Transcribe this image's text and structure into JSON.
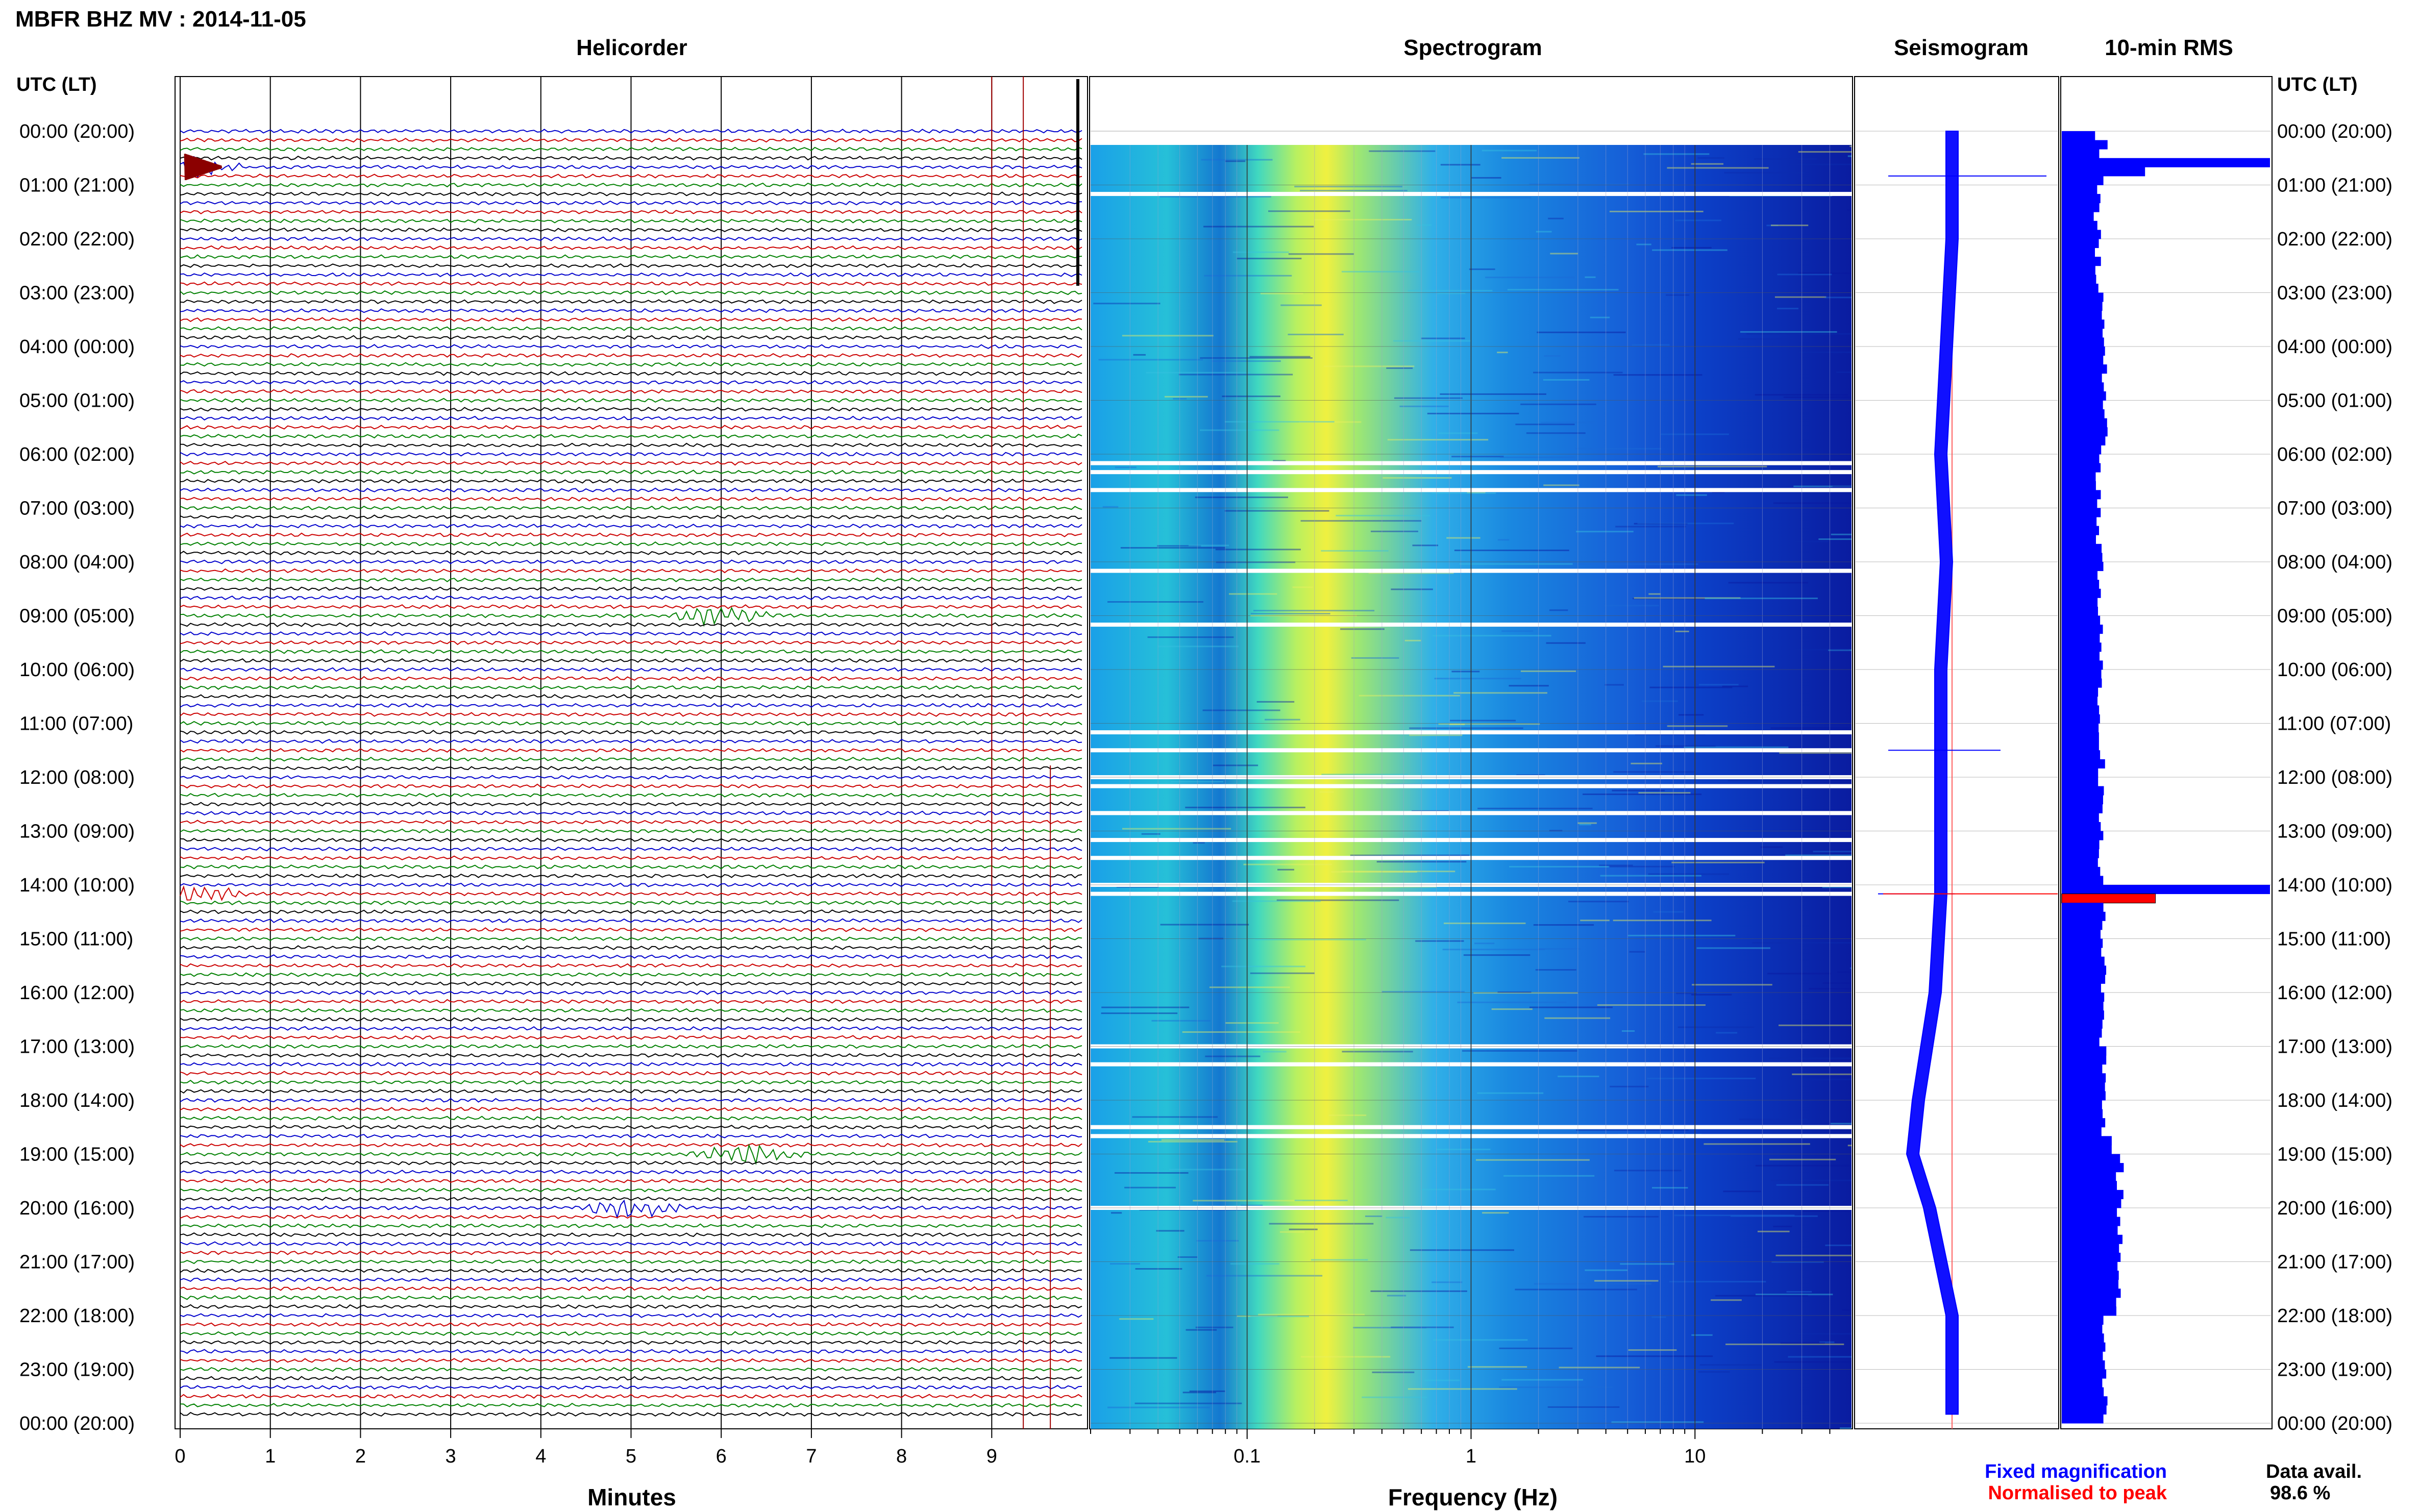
{
  "title": "MBFR BHZ MV : 2014-11-05",
  "panels": {
    "helicorder": "Helicorder",
    "spectrogram": "Spectrogram",
    "seismogram": "Seismogram",
    "rms": "10-min RMS"
  },
  "axis": {
    "utc_header_left": "UTC (LT)",
    "utc_header_right": "UTC (LT)",
    "minutes_label": "Minutes",
    "frequency_label": "Frequency (Hz)"
  },
  "time_labels": [
    "00:00 (20:00)",
    "01:00 (21:00)",
    "02:00 (22:00)",
    "03:00 (23:00)",
    "04:00 (00:00)",
    "05:00 (01:00)",
    "06:00 (02:00)",
    "07:00 (03:00)",
    "08:00 (04:00)",
    "09:00 (05:00)",
    "10:00 (06:00)",
    "11:00 (07:00)",
    "12:00 (08:00)",
    "13:00 (09:00)",
    "14:00 (10:00)",
    "15:00 (11:00)",
    "16:00 (12:00)",
    "17:00 (13:00)",
    "18:00 (14:00)",
    "19:00 (15:00)",
    "20:00 (16:00)",
    "21:00 (17:00)",
    "22:00 (18:00)",
    "23:00 (19:00)",
    "00:00 (20:00)"
  ],
  "minute_ticks": [
    "0",
    "1",
    "2",
    "3",
    "4",
    "5",
    "6",
    "7",
    "8",
    "9"
  ],
  "frequency_ticks": [
    "0.1",
    "1",
    "10"
  ],
  "legend": {
    "fixed": "Fixed magnification",
    "normalised": "Normalised to peak",
    "fixed_color": "#0000ff",
    "normalised_color": "#ff0000"
  },
  "availability": {
    "label": "Data avail.",
    "value": "98.6 %"
  },
  "colors": {
    "trace_cycle": [
      "#000000",
      "#0000cc",
      "#cc0000",
      "#008000"
    ],
    "rms_bar": "#0000ff",
    "rms_peak": "#ff0000"
  },
  "chart_data": [
    {
      "type": "line",
      "name": "helicorder",
      "rows": 144,
      "row_interval_minutes": 10,
      "xlim_minutes": [
        0,
        10
      ],
      "events": [
        {
          "time_utc": "00:40",
          "minute": 0.1,
          "note": "large event"
        },
        {
          "time_utc": "14:10",
          "minute": 0.1,
          "note": "step offset"
        },
        {
          "time_utc": "09:00",
          "minute": 6.0,
          "note": "burst"
        },
        {
          "time_utc": "19:00",
          "minute": 6.3,
          "note": "burst"
        },
        {
          "time_utc": "20:00",
          "minute": 5.0,
          "note": "spike"
        }
      ]
    },
    {
      "type": "heatmap",
      "name": "spectrogram",
      "x_scale": "log",
      "xlim_hz": [
        0.02,
        50
      ],
      "gap_times_utc": [
        "01:10",
        "06:10",
        "06:20",
        "06:40",
        "08:10",
        "09:10",
        "11:10",
        "11:30",
        "12:00",
        "12:10",
        "12:40",
        "13:10",
        "13:30",
        "14:00",
        "14:10",
        "17:00",
        "17:20",
        "18:30",
        "18:40",
        "20:00"
      ]
    },
    {
      "type": "line",
      "name": "seismogram",
      "samples_utc": [
        "00:00",
        "02:00",
        "04:00",
        "06:00",
        "08:00",
        "10:00",
        "12:00",
        "14:00",
        "14:10",
        "16:00",
        "18:00",
        "19:00",
        "20:00",
        "22:00",
        "23:50"
      ],
      "center_offset": [
        0.0,
        0.0,
        -0.05,
        -0.1,
        -0.05,
        -0.1,
        -0.1,
        -0.1,
        -0.1,
        -0.15,
        -0.3,
        -0.35,
        -0.2,
        0.0,
        0.0
      ]
    },
    {
      "type": "bar",
      "name": "10-min RMS",
      "orientation": "horizontal",
      "bins_utc": [
        "00:00",
        "00:10",
        "00:20",
        "00:30",
        "00:40",
        "00:50",
        "01:00",
        "03:00",
        "06:00",
        "10:00",
        "14:00",
        "14:10",
        "14:20",
        "18:40",
        "19:00",
        "22:00",
        "23:50"
      ],
      "values": [
        0.16,
        0.22,
        0.18,
        1.0,
        0.4,
        0.2,
        0.17,
        0.2,
        0.18,
        0.19,
        1.0,
        0.45,
        0.2,
        0.24,
        0.28,
        0.2,
        0.2
      ]
    }
  ]
}
